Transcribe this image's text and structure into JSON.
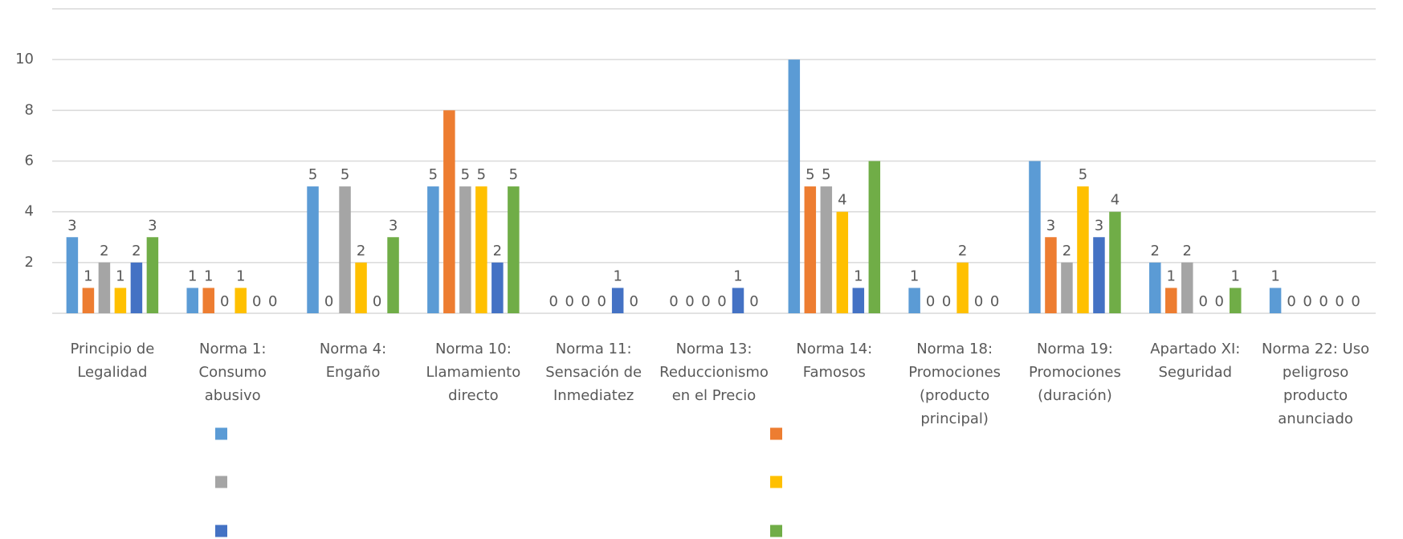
{
  "chart_data": {
    "type": "bar",
    "categories": [
      "Principio de\nLegalidad",
      "Norma 1:\nConsumo\nabusivo",
      "Norma 4:\nEngaño",
      "Norma 10:\nLlamamiento\ndirecto",
      "Norma 11:\nSensación de\nInmediatez",
      "Norma 13:\nReduccionismo\nen el Precio",
      "Norma 14:\nFamosos",
      "Norma 18:\nPromociones\n(producto\nprincipal)",
      "Norma 19:\nPromociones\n(duración)",
      "Apartado XI:\nSeguridad",
      "Norma 22: Uso\npeligroso\nproducto\nanunciado"
    ],
    "series": [
      {
        "color": "#5b9bd5",
        "values": [
          3,
          1,
          5,
          5,
          0,
          0,
          10,
          1,
          6,
          2,
          1
        ],
        "value_labels": [
          3,
          1,
          5,
          5,
          0,
          0,
          null,
          1,
          null,
          2,
          1
        ]
      },
      {
        "color": "#ed7d31",
        "values": [
          1,
          1,
          0,
          8,
          0,
          0,
          5,
          0,
          3,
          1,
          0
        ],
        "value_labels": [
          1,
          1,
          0,
          null,
          0,
          0,
          5,
          0,
          3,
          1,
          0
        ]
      },
      {
        "color": "#a5a5a5",
        "values": [
          2,
          0,
          5,
          5,
          0,
          0,
          5,
          0,
          2,
          2,
          0
        ],
        "value_labels": [
          2,
          0,
          5,
          5,
          0,
          0,
          5,
          0,
          2,
          2,
          0
        ]
      },
      {
        "color": "#ffc000",
        "values": [
          1,
          1,
          2,
          5,
          0,
          0,
          4,
          2,
          5,
          0,
          0
        ],
        "value_labels": [
          1,
          1,
          2,
          5,
          0,
          0,
          4,
          2,
          5,
          0,
          0
        ]
      },
      {
        "color": "#4472c4",
        "values": [
          2,
          0,
          0,
          2,
          1,
          1,
          1,
          0,
          3,
          0,
          0
        ],
        "value_labels": [
          2,
          0,
          0,
          2,
          1,
          1,
          1,
          0,
          3,
          0,
          0
        ]
      },
      {
        "color": "#70ad47",
        "values": [
          3,
          0,
          3,
          5,
          0,
          0,
          6,
          0,
          4,
          1,
          0
        ],
        "value_labels": [
          3,
          0,
          3,
          5,
          0,
          0,
          null,
          0,
          4,
          1,
          0
        ]
      }
    ],
    "ylim": [
      0,
      12
    ],
    "yticks": [
      2,
      4,
      6,
      8,
      10
    ],
    "grid": true,
    "legend": "bottom"
  }
}
